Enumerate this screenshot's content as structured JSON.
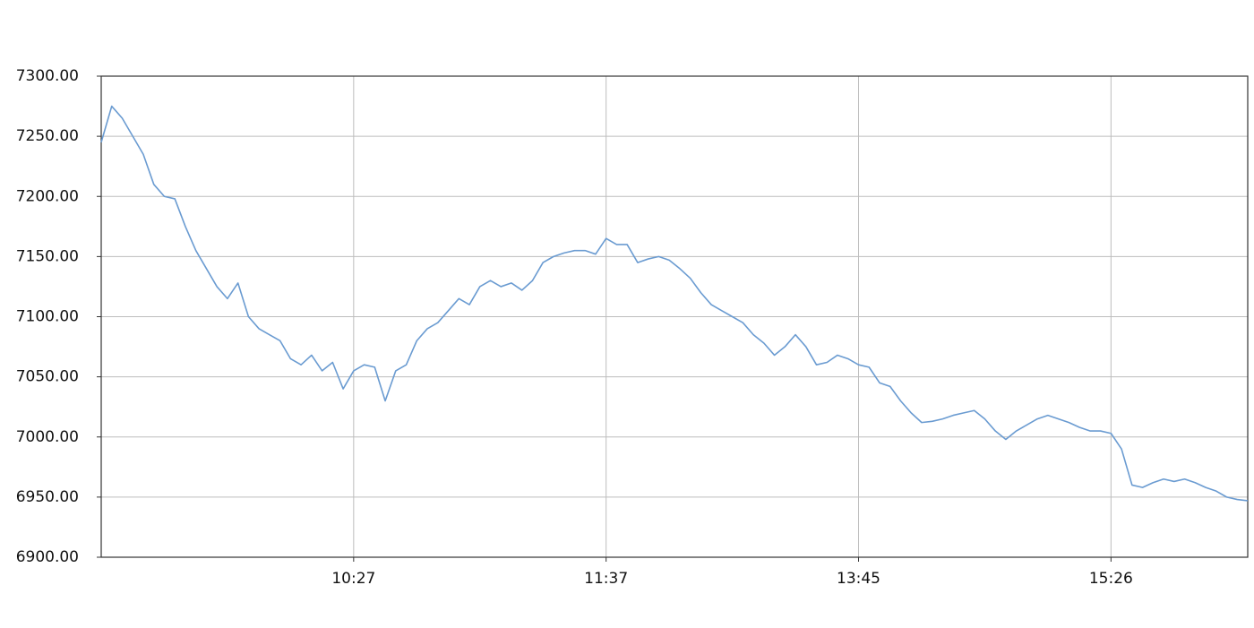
{
  "chart_data": {
    "type": "line",
    "categories": [
      null,
      null,
      null,
      null,
      null,
      null,
      null,
      null,
      null,
      null,
      null,
      null,
      null,
      null,
      null,
      null,
      null,
      null,
      null,
      null,
      null,
      null,
      null,
      null,
      "10:27",
      null,
      null,
      null,
      null,
      null,
      null,
      null,
      null,
      null,
      null,
      null,
      null,
      null,
      null,
      null,
      null,
      null,
      null,
      null,
      null,
      null,
      null,
      null,
      "11:37",
      null,
      null,
      null,
      null,
      null,
      null,
      null,
      null,
      null,
      null,
      null,
      null,
      null,
      null,
      null,
      null,
      null,
      null,
      null,
      null,
      null,
      null,
      null,
      "13:45",
      null,
      null,
      null,
      null,
      null,
      null,
      null,
      null,
      null,
      null,
      null,
      null,
      null,
      null,
      null,
      null,
      null,
      null,
      null,
      null,
      null,
      null,
      null,
      "15:26",
      null,
      null,
      null,
      null,
      null,
      null,
      null,
      null,
      null,
      null,
      null,
      null,
      null
    ],
    "values": [
      7245,
      7275,
      7265,
      7250,
      7235,
      7210,
      7200,
      7198,
      7175,
      7155,
      7140,
      7125,
      7115,
      7128,
      7100,
      7090,
      7085,
      7080,
      7065,
      7060,
      7068,
      7055,
      7062,
      7040,
      7055,
      7060,
      7058,
      7030,
      7055,
      7060,
      7080,
      7090,
      7095,
      7105,
      7115,
      7110,
      7125,
      7130,
      7125,
      7128,
      7122,
      7130,
      7145,
      7150,
      7153,
      7155,
      7155,
      7152,
      7165,
      7160,
      7160,
      7145,
      7148,
      7150,
      7147,
      7140,
      7132,
      7120,
      7110,
      7105,
      7100,
      7095,
      7085,
      7078,
      7068,
      7075,
      7085,
      7075,
      7060,
      7062,
      7068,
      7065,
      7060,
      7058,
      7045,
      7042,
      7030,
      7020,
      7012,
      7013,
      7015,
      7018,
      7020,
      7022,
      7015,
      7005,
      6998,
      7005,
      7010,
      7015,
      7018,
      7015,
      7012,
      7008,
      7005,
      7005,
      7003,
      6990,
      6960,
      6958,
      6962,
      6965,
      6963,
      6965,
      6962,
      6958,
      6955,
      6950,
      6948,
      6947
    ],
    "color": "#6a9bd1",
    "ylim": [
      6900,
      7300
    ],
    "yticks": [
      {
        "value": 6900,
        "label": "6900.00"
      },
      {
        "value": 6950,
        "label": "6950.00"
      },
      {
        "value": 7000,
        "label": "7000.00"
      },
      {
        "value": 7050,
        "label": "7050.00"
      },
      {
        "value": 7100,
        "label": "7100.00"
      },
      {
        "value": 7150,
        "label": "7150.00"
      },
      {
        "value": 7200,
        "label": "7200.00"
      },
      {
        "value": 7250,
        "label": "7250.00"
      },
      {
        "value": 7300,
        "label": "7300.00"
      }
    ],
    "grid": true
  }
}
